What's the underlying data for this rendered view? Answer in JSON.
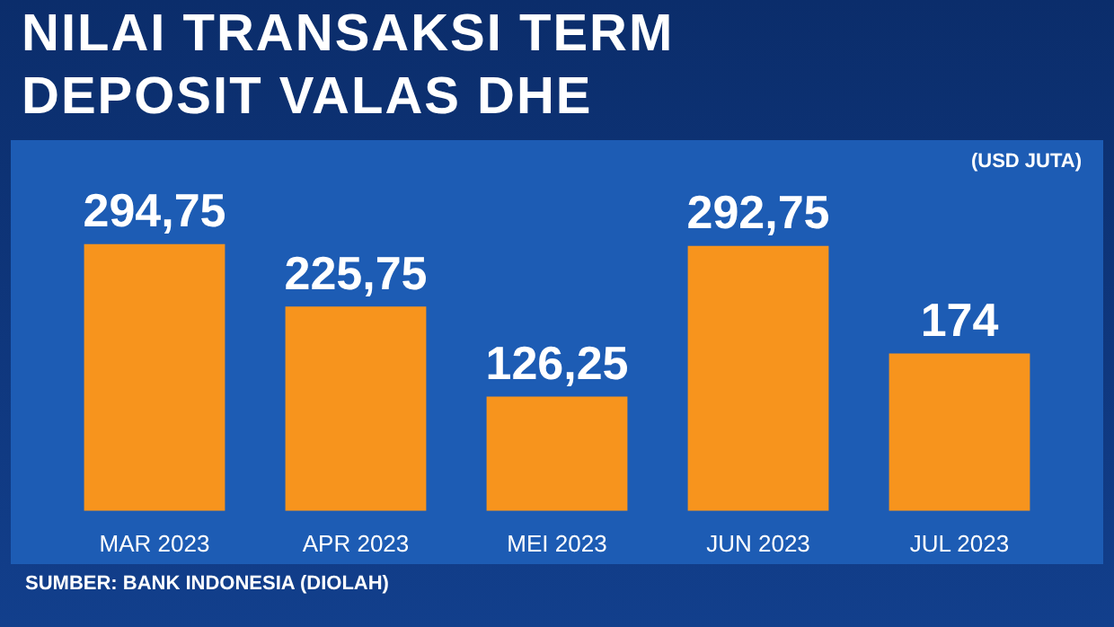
{
  "chart_data": {
    "type": "bar",
    "title": "NILAI TRANSAKSI TERM DEPOSIT VALAS DHE",
    "subtitle": "(USD JUTA)",
    "categories": [
      "MAR 2023",
      "APR 2023",
      "MEI 2023",
      "JUN 2023",
      "JUL 2023"
    ],
    "values": [
      294.75,
      225.75,
      126.25,
      292.75,
      174
    ],
    "value_labels": [
      "294,75",
      "225,75",
      "126,25",
      "292,75",
      "174"
    ],
    "color": "#f7941d",
    "annotations": [
      "SUMBER: BANK INDONESIA (DIOLAH)"
    ]
  }
}
